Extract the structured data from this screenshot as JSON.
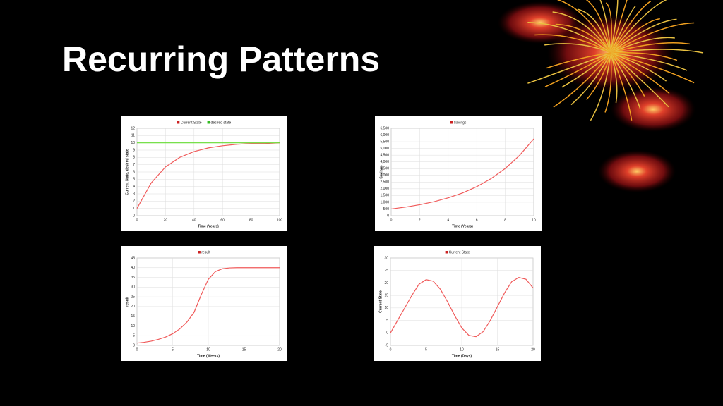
{
  "title": "Recurring Patterns",
  "chart_data": [
    {
      "type": "line",
      "x": [
        0,
        10,
        20,
        30,
        40,
        50,
        60,
        70,
        80,
        90,
        100
      ],
      "series": [
        {
          "name": "Current State",
          "color": "#f05a5a",
          "values": [
            1,
            4.5,
            6.7,
            8.0,
            8.8,
            9.3,
            9.6,
            9.8,
            9.9,
            9.9,
            10
          ]
        },
        {
          "name": "desired state",
          "color": "#66dd33",
          "values": [
            10,
            10,
            10,
            10,
            10,
            10,
            10,
            10,
            10,
            10,
            10
          ]
        }
      ],
      "xlabel": "Time (Years)",
      "ylabel": "Current State, desired state",
      "xlim": [
        0,
        100
      ],
      "xticks": [
        0,
        20,
        40,
        60,
        80,
        100
      ],
      "ylim": [
        0,
        12
      ],
      "yticks": [
        0,
        1,
        2,
        3,
        4,
        5,
        6,
        7,
        8,
        9,
        10,
        11,
        12
      ],
      "grid": true
    },
    {
      "type": "line",
      "x": [
        0,
        1,
        2,
        3,
        4,
        5,
        6,
        7,
        8,
        9,
        10
      ],
      "series": [
        {
          "name": "Savings",
          "color": "#f05a5a",
          "values": [
            500,
            638,
            814,
            1038,
            1325,
            1690,
            2157,
            2752,
            3511,
            4480,
            5716
          ]
        }
      ],
      "xlabel": "Time (Years)",
      "ylabel": "Savings",
      "xlim": [
        0,
        10
      ],
      "xticks": [
        0,
        2,
        4,
        6,
        8,
        10
      ],
      "ylim": [
        0,
        6500
      ],
      "yticks": [
        0,
        500,
        {
          "value": 1000,
          "label": "1,000"
        },
        {
          "value": 1500,
          "label": "1,500"
        },
        {
          "value": 2000,
          "label": "2,000"
        },
        {
          "value": 2500,
          "label": "2,500"
        },
        {
          "value": 3000,
          "label": "3,000"
        },
        {
          "value": 3500,
          "label": "3,500"
        },
        {
          "value": 4000,
          "label": "4,000"
        },
        {
          "value": 4500,
          "label": "4,500"
        },
        {
          "value": 5000,
          "label": "5,000"
        },
        {
          "value": 5500,
          "label": "5,500"
        },
        {
          "value": 6000,
          "label": "6,000"
        },
        {
          "value": 6500,
          "label": "6,500"
        }
      ],
      "grid": true
    },
    {
      "type": "line",
      "x": [
        0,
        1,
        2,
        3,
        4,
        5,
        6,
        7,
        8,
        9,
        10,
        11,
        12,
        13,
        14,
        15,
        16,
        17,
        18,
        19,
        20
      ],
      "series": [
        {
          "name": "result",
          "color": "#f05a5a",
          "values": [
            1.2,
            1.6,
            2.2,
            3.1,
            4.3,
            6,
            8.5,
            12,
            17,
            26,
            34,
            38,
            39.5,
            39.9,
            40,
            40,
            40,
            40,
            40,
            40,
            40
          ]
        }
      ],
      "xlabel": "Time (Weeks)",
      "ylabel": "result",
      "xlim": [
        0,
        20
      ],
      "xticks": [
        0,
        5,
        10,
        15,
        20
      ],
      "ylim": [
        0,
        45
      ],
      "yticks": [
        0,
        5,
        10,
        15,
        20,
        25,
        30,
        35,
        40,
        45
      ],
      "grid": true
    },
    {
      "type": "line",
      "x": [
        0,
        1,
        2,
        3,
        4,
        5,
        6,
        7,
        8,
        9,
        10,
        11,
        12,
        13,
        14,
        15,
        16,
        17,
        18,
        19,
        20
      ],
      "series": [
        {
          "name": "Current State",
          "color": "#f05a5a",
          "values": [
            0,
            5,
            10,
            15,
            19.5,
            21.3,
            20.7,
            17.5,
            12.5,
            7,
            2,
            -1,
            -1.5,
            0.5,
            5,
            10.5,
            16,
            20.5,
            22.2,
            21.5,
            18
          ]
        }
      ],
      "xlabel": "Time (Days)",
      "ylabel": "Current State",
      "xlim": [
        0,
        20
      ],
      "xticks": [
        0,
        5,
        10,
        15,
        20
      ],
      "ylim": [
        -5,
        30
      ],
      "yticks": [
        -5,
        0,
        5,
        10,
        15,
        20,
        25,
        30
      ],
      "grid": true
    }
  ]
}
